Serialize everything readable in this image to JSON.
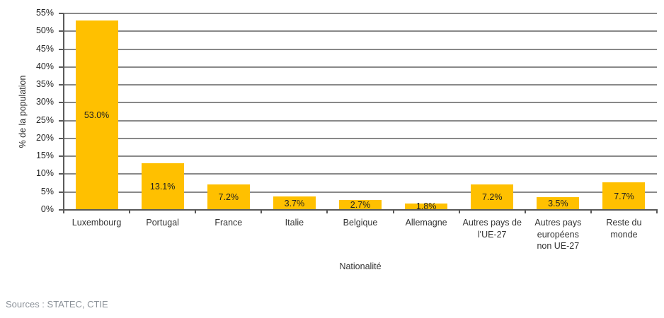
{
  "chart_data": {
    "type": "bar",
    "title": "",
    "categories": [
      "Luxembourg",
      "Portugal",
      "France",
      "Italie",
      "Belgique",
      "Allemagne",
      "Autres pays de\nl'UE-27",
      "Autres pays\neuropéens\nnon UE-27",
      "Reste du\nmonde"
    ],
    "values": [
      53.0,
      13.1,
      7.2,
      3.7,
      2.7,
      1.8,
      7.2,
      3.5,
      7.7
    ],
    "value_labels": [
      "53.0%",
      "13.1%",
      "7.2%",
      "3.7%",
      "2.7%",
      "1.8%",
      "7.2%",
      "3.5%",
      "7.7%"
    ],
    "xlabel": "Nationalité",
    "ylabel": "% de la population",
    "ylim": [
      0,
      55
    ],
    "ytick_step": 5,
    "ytick_suffix": "%",
    "grid": true,
    "legend": false,
    "bar_color": "#FFC000",
    "gridline_color": "#898989",
    "axis_color": "#595959",
    "text_color": "#262626"
  },
  "footer": {
    "source": "Sources : STATEC, CTIE"
  }
}
